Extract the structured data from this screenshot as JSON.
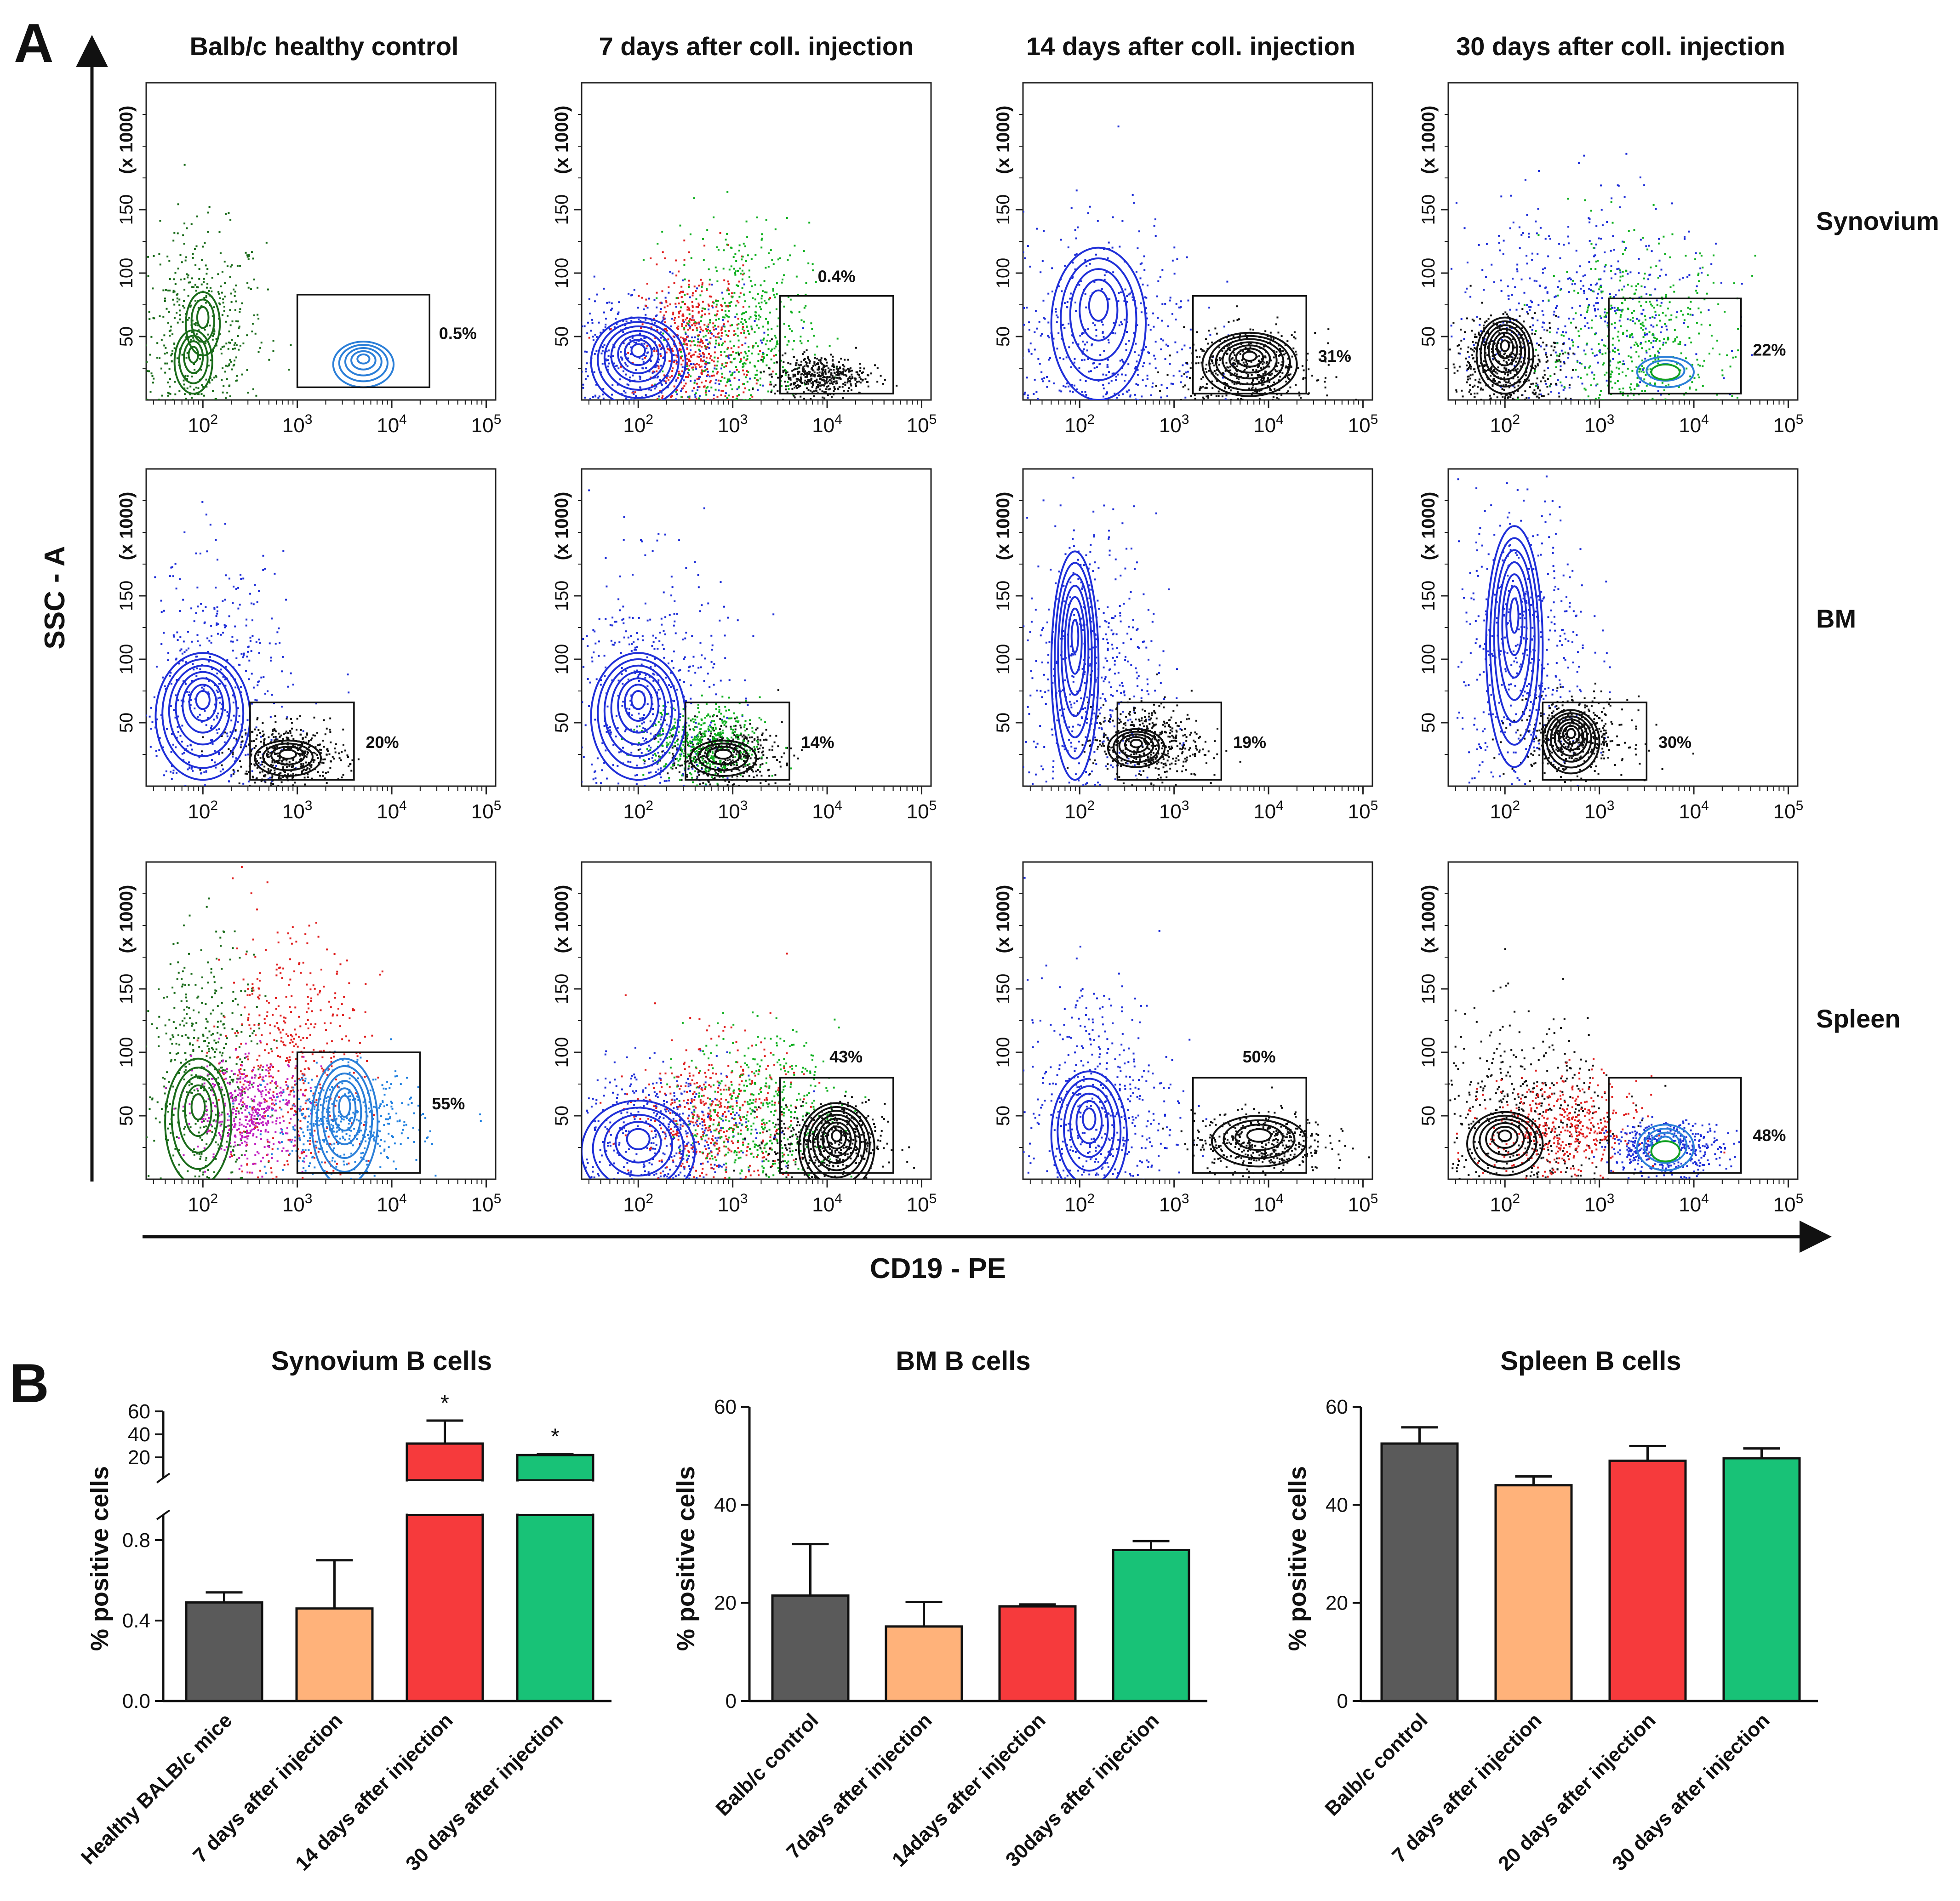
{
  "panel_labels": {
    "a": "A",
    "b": "B"
  },
  "flow": {
    "y_axis_label": "SSC - A",
    "x_axis_label": "CD19 - PE",
    "y_scale_label": "(x 1000)",
    "y_ticks": [
      "50",
      "100",
      "150"
    ],
    "y_tick_values": [
      50,
      100,
      150
    ],
    "y_range": [
      0,
      250
    ],
    "x_tick_exponents": [
      "2",
      "3",
      "4",
      "5"
    ],
    "x_tick_base": "10",
    "x_log_range": [
      1.4,
      5.1
    ],
    "columns": [
      "Balb/c healthy control",
      "7 days after coll. injection",
      "14 days after coll. injection",
      "30 days after coll. injection"
    ],
    "rows": [
      "Synovium",
      "BM",
      "Spleen"
    ],
    "gate_percent": [
      [
        "0.5%",
        "0.4%",
        "31%",
        "22%"
      ],
      [
        "20%",
        "14%",
        "19%",
        "30%"
      ],
      [
        "55%",
        "43%",
        "50%",
        "48%"
      ]
    ],
    "gates": [
      [
        {
          "x": [
            3.0,
            4.4
          ],
          "y": [
            10,
            83
          ]
        },
        {
          "x": [
            3.5,
            4.7
          ],
          "y": [
            5,
            82
          ]
        },
        {
          "x": [
            3.2,
            4.4
          ],
          "y": [
            5,
            82
          ]
        },
        {
          "x": [
            3.1,
            4.5
          ],
          "y": [
            5,
            80
          ]
        }
      ],
      [
        {
          "x": [
            2.5,
            3.6
          ],
          "y": [
            5,
            66
          ]
        },
        {
          "x": [
            2.5,
            3.6
          ],
          "y": [
            5,
            66
          ]
        },
        {
          "x": [
            2.4,
            3.5
          ],
          "y": [
            5,
            66
          ]
        },
        {
          "x": [
            2.4,
            3.5
          ],
          "y": [
            5,
            66
          ]
        }
      ],
      [
        {
          "x": [
            3.0,
            4.3
          ],
          "y": [
            5,
            100
          ]
        },
        {
          "x": [
            3.5,
            4.7
          ],
          "y": [
            5,
            80
          ]
        },
        {
          "x": [
            3.2,
            4.4
          ],
          "y": [
            5,
            80
          ]
        },
        {
          "x": [
            3.1,
            4.5
          ],
          "y": [
            5,
            80
          ]
        }
      ]
    ],
    "label_pos": [
      [
        {
          "x": 4.7,
          "y": 48
        },
        {
          "x": 4.1,
          "y": 93
        },
        {
          "x": 4.7,
          "y": 30
        },
        {
          "x": 4.8,
          "y": 35
        }
      ],
      [
        {
          "x": 3.9,
          "y": 30
        },
        {
          "x": 3.9,
          "y": 30
        },
        {
          "x": 3.8,
          "y": 30
        },
        {
          "x": 3.8,
          "y": 30
        }
      ],
      [
        {
          "x": 4.6,
          "y": 55
        },
        {
          "x": 4.2,
          "y": 92
        },
        {
          "x": 3.9,
          "y": 92
        },
        {
          "x": 4.8,
          "y": 30
        }
      ]
    ],
    "populations": [
      [
        [
          {
            "color": "#1a6b1a",
            "x": 1.95,
            "y": 55,
            "sx": 0.35,
            "sy": 40
          }
        ],
        [
          {
            "color": "#1f2fd8",
            "x": 2.0,
            "y": 35,
            "sx": 0.55,
            "sy": 28
          },
          {
            "color": "#e02020",
            "x": 2.6,
            "y": 45,
            "sx": 0.3,
            "sy": 30
          },
          {
            "color": "#10b020",
            "x": 3.1,
            "y": 60,
            "sx": 0.35,
            "sy": 40
          },
          {
            "color": "#111111",
            "x": 3.9,
            "y": 20,
            "sx": 0.25,
            "sy": 8
          }
        ],
        [
          {
            "color": "#1f2fd8",
            "x": 2.2,
            "y": 55,
            "sx": 0.55,
            "sy": 45
          },
          {
            "color": "#111111",
            "x": 3.8,
            "y": 25,
            "sx": 0.35,
            "sy": 15
          }
        ],
        [
          {
            "color": "#1f2fd8",
            "x": 2.7,
            "y": 70,
            "sx": 0.7,
            "sy": 45
          },
          {
            "color": "#111111",
            "x": 2.0,
            "y": 30,
            "sx": 0.3,
            "sy": 20
          },
          {
            "color": "#10b020",
            "x": 3.4,
            "y": 45,
            "sx": 0.5,
            "sy": 40
          }
        ]
      ],
      [
        [
          {
            "color": "#1f2fd8",
            "x": 2.1,
            "y": 70,
            "sx": 0.4,
            "sy": 55
          },
          {
            "color": "#111111",
            "x": 2.9,
            "y": 25,
            "sx": 0.3,
            "sy": 12
          }
        ],
        [
          {
            "color": "#1f2fd8",
            "x": 2.1,
            "y": 70,
            "sx": 0.4,
            "sy": 55
          },
          {
            "color": "#111111",
            "x": 2.9,
            "y": 25,
            "sx": 0.3,
            "sy": 12
          },
          {
            "color": "#10b020",
            "x": 2.7,
            "y": 35,
            "sx": 0.3,
            "sy": 15
          }
        ],
        [
          {
            "color": "#1f2fd8",
            "x": 2.1,
            "y": 95,
            "sx": 0.35,
            "sy": 60
          },
          {
            "color": "#111111",
            "x": 2.7,
            "y": 35,
            "sx": 0.3,
            "sy": 15
          }
        ],
        [
          {
            "color": "#1f2fd8",
            "x": 2.2,
            "y": 110,
            "sx": 0.35,
            "sy": 60
          },
          {
            "color": "#111111",
            "x": 2.7,
            "y": 40,
            "sx": 0.3,
            "sy": 15
          }
        ]
      ],
      [
        [
          {
            "color": "#1a6b1a",
            "x": 2.0,
            "y": 85,
            "sx": 0.3,
            "sy": 50
          },
          {
            "color": "#e02020",
            "x": 2.9,
            "y": 95,
            "sx": 0.4,
            "sy": 50
          },
          {
            "color": "#c01fc0",
            "x": 2.5,
            "y": 55,
            "sx": 0.3,
            "sy": 20
          },
          {
            "color": "#2080e0",
            "x": 3.5,
            "y": 45,
            "sx": 0.4,
            "sy": 20
          }
        ],
        [
          {
            "color": "#1f2fd8",
            "x": 2.2,
            "y": 40,
            "sx": 0.5,
            "sy": 25
          },
          {
            "color": "#e02020",
            "x": 2.8,
            "y": 50,
            "sx": 0.4,
            "sy": 30
          },
          {
            "color": "#10b020",
            "x": 3.3,
            "y": 55,
            "sx": 0.4,
            "sy": 30
          },
          {
            "color": "#111111",
            "x": 4.0,
            "y": 30,
            "sx": 0.3,
            "sy": 15
          }
        ],
        [
          {
            "color": "#1f2fd8",
            "x": 2.2,
            "y": 60,
            "sx": 0.4,
            "sy": 50
          },
          {
            "color": "#111111",
            "x": 3.9,
            "y": 30,
            "sx": 0.35,
            "sy": 12
          }
        ],
        [
          {
            "color": "#111111",
            "x": 2.2,
            "y": 50,
            "sx": 0.5,
            "sy": 40
          },
          {
            "color": "#e02020",
            "x": 2.6,
            "y": 40,
            "sx": 0.4,
            "sy": 20
          },
          {
            "color": "#1f2fd8",
            "x": 3.7,
            "y": 25,
            "sx": 0.3,
            "sy": 10
          }
        ]
      ]
    ],
    "contours": [
      [
        [
          {
            "color": "#1a6b1a",
            "x": 1.9,
            "y": 30,
            "rx": 0.2,
            "ry": 25,
            "n": 4
          },
          {
            "color": "#1a6b1a",
            "x": 2.0,
            "y": 60,
            "rx": 0.18,
            "ry": 25,
            "n": 3
          },
          {
            "color": "#2b7fd8",
            "x": 3.7,
            "y": 28,
            "rx": 0.32,
            "ry": 18,
            "n": 5
          }
        ],
        [
          {
            "color": "#1f2fd8",
            "x": 2.0,
            "y": 30,
            "rx": 0.5,
            "ry": 35,
            "n": 7
          }
        ],
        [
          {
            "color": "#1f2fd8",
            "x": 2.2,
            "y": 60,
            "rx": 0.5,
            "ry": 60,
            "n": 5
          },
          {
            "color": "#111111",
            "x": 3.8,
            "y": 28,
            "rx": 0.5,
            "ry": 25,
            "n": 7
          }
        ],
        [
          {
            "color": "#111111",
            "x": 2.0,
            "y": 35,
            "rx": 0.3,
            "ry": 30,
            "n": 7
          },
          {
            "color": "#2b7fd8",
            "x": 3.7,
            "y": 22,
            "rx": 0.3,
            "ry": 12,
            "n": 3
          },
          {
            "color": "#10a020",
            "x": 3.7,
            "y": 22,
            "rx": 0.15,
            "ry": 6,
            "n": 1
          }
        ]
      ],
      [
        [
          {
            "color": "#1f2fd8",
            "x": 2.0,
            "y": 55,
            "rx": 0.5,
            "ry": 50,
            "n": 7
          },
          {
            "color": "#111111",
            "x": 2.9,
            "y": 22,
            "rx": 0.35,
            "ry": 14,
            "n": 4
          }
        ],
        [
          {
            "color": "#1f2fd8",
            "x": 2.0,
            "y": 55,
            "rx": 0.5,
            "ry": 50,
            "n": 7
          },
          {
            "color": "#111111",
            "x": 2.9,
            "y": 22,
            "rx": 0.35,
            "ry": 14,
            "n": 4
          }
        ],
        [
          {
            "color": "#1f2fd8",
            "x": 1.95,
            "y": 95,
            "rx": 0.25,
            "ry": 90,
            "n": 7
          },
          {
            "color": "#111111",
            "x": 2.6,
            "y": 30,
            "rx": 0.3,
            "ry": 15,
            "n": 5
          }
        ],
        [
          {
            "color": "#1f2fd8",
            "x": 2.1,
            "y": 110,
            "rx": 0.3,
            "ry": 95,
            "n": 7
          },
          {
            "color": "#111111",
            "x": 2.7,
            "y": 35,
            "rx": 0.3,
            "ry": 25,
            "n": 7
          }
        ]
      ],
      [
        [
          {
            "color": "#1a6b1a",
            "x": 1.95,
            "y": 45,
            "rx": 0.35,
            "ry": 50,
            "n": 5
          },
          {
            "color": "#2b7fd8",
            "x": 3.5,
            "y": 45,
            "rx": 0.35,
            "ry": 50,
            "n": 6
          }
        ],
        [
          {
            "color": "#1f2fd8",
            "x": 2.0,
            "y": 22,
            "rx": 0.6,
            "ry": 40,
            "n": 5
          },
          {
            "color": "#111111",
            "x": 4.1,
            "y": 25,
            "rx": 0.4,
            "ry": 35,
            "n": 8
          }
        ],
        [
          {
            "color": "#1f2fd8",
            "x": 2.1,
            "y": 35,
            "rx": 0.4,
            "ry": 50,
            "n": 6
          },
          {
            "color": "#111111",
            "x": 3.9,
            "y": 30,
            "rx": 0.5,
            "ry": 20,
            "n": 4
          }
        ],
        [
          {
            "color": "#111111",
            "x": 2.0,
            "y": 28,
            "rx": 0.4,
            "ry": 25,
            "n": 6
          },
          {
            "color": "#2b7fd8",
            "x": 3.7,
            "y": 25,
            "rx": 0.3,
            "ry": 18,
            "n": 4
          },
          {
            "color": "#10a020",
            "x": 3.7,
            "y": 22,
            "rx": 0.15,
            "ry": 8,
            "n": 1
          }
        ]
      ]
    ]
  },
  "bar_colors": [
    "#5a5a5a",
    "#ffb27a",
    "#f63a3c",
    "#18c277"
  ],
  "chart_data": [
    {
      "type": "bar",
      "title": "Synovium B cells",
      "ylabel": "% positive cells",
      "categories": [
        "Healthy BALB/c mice",
        "7 days after injection",
        "14 days after injection",
        "30 days after injection"
      ],
      "values": [
        0.49,
        0.46,
        32,
        22
      ],
      "errors": [
        0.05,
        0.24,
        20,
        1
      ],
      "significance": [
        "",
        "",
        "*",
        "*"
      ],
      "ylim": [
        0,
        60
      ],
      "y_axis_break": {
        "lower_range": [
          0,
          1
        ],
        "upper_range": [
          0,
          60
        ],
        "lower_ticks": [
          0.0,
          0.4,
          0.8
        ],
        "upper_ticks": [
          20,
          40,
          60
        ]
      },
      "lower_tick_labels": [
        "0.0",
        "0.4",
        "0.8"
      ],
      "upper_tick_labels": [
        "20",
        "40",
        "60"
      ]
    },
    {
      "type": "bar",
      "title": "BM B cells",
      "ylabel": "% positive cells",
      "categories": [
        "Balb/c control",
        "7days after injection",
        "14days after injection",
        "30days after injection"
      ],
      "values": [
        21.5,
        15.2,
        19.3,
        30.8
      ],
      "errors": [
        10.5,
        5,
        0.4,
        1.8
      ],
      "ylim": [
        0,
        60
      ],
      "tick_labels": [
        "0",
        "20",
        "40",
        "60"
      ],
      "tick_values": [
        0,
        20,
        40,
        60
      ]
    },
    {
      "type": "bar",
      "title": "Spleen B cells",
      "ylabel": "% positive cells",
      "categories": [
        "Balb/c control",
        "7 days after injection",
        "20 days after injection",
        "30 days after injection"
      ],
      "values": [
        52.5,
        44,
        49,
        49.5
      ],
      "errors": [
        3.3,
        1.8,
        3,
        2
      ],
      "ylim": [
        0,
        60
      ],
      "tick_labels": [
        "0",
        "20",
        "40",
        "60"
      ],
      "tick_values": [
        0,
        20,
        40,
        60
      ]
    }
  ]
}
